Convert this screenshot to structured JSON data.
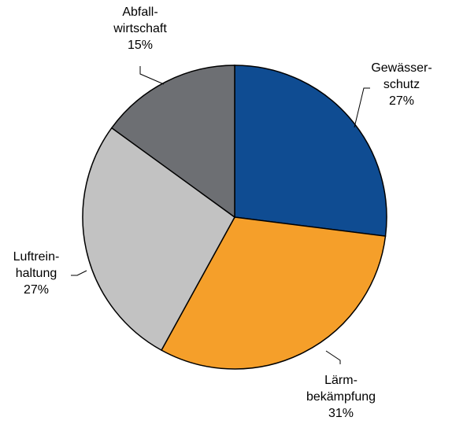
{
  "chart_data": {
    "type": "pie",
    "title": "",
    "slices": [
      {
        "label_lines": [
          "Gewässer-",
          "schutz"
        ],
        "pct_label": "27%",
        "value": 27,
        "color": "#0f4c92"
      },
      {
        "label_lines": [
          "Lärm-",
          "bekämpfung"
        ],
        "pct_label": "31%",
        "value": 31,
        "color": "#f59f2a"
      },
      {
        "label_lines": [
          "Luftrein-",
          "haltung"
        ],
        "pct_label": "27%",
        "value": 27,
        "color": "#c2c2c2"
      },
      {
        "label_lines": [
          "Abfall-",
          "wirtschaft"
        ],
        "pct_label": "15%",
        "value": 15,
        "color": "#6d6f73"
      }
    ],
    "start_angle_deg": 0,
    "direction": "clockwise",
    "legend": "none"
  }
}
